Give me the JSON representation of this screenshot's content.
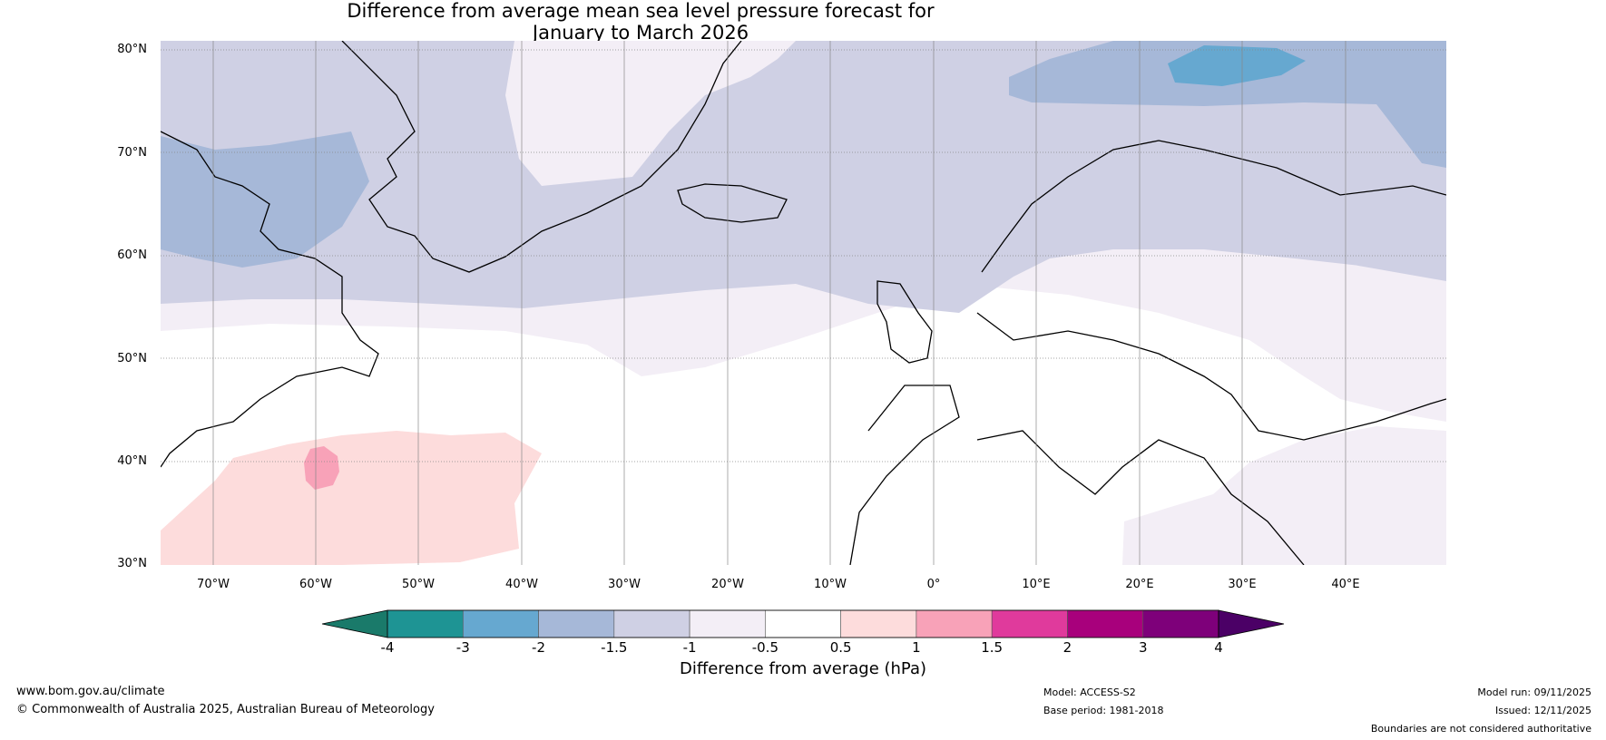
{
  "title": {
    "line1": "Difference from average mean sea level pressure forecast for",
    "line2": "January to March 2026"
  },
  "lat_ticks": [
    "80°N",
    "70°N",
    "60°N",
    "50°N",
    "40°N",
    "30°N"
  ],
  "lon_ticks": [
    "70°W",
    "60°W",
    "50°W",
    "40°W",
    "30°W",
    "20°W",
    "10°W",
    "0°",
    "10°E",
    "20°E",
    "30°E",
    "40°E"
  ],
  "colorbar": {
    "title": "Difference from average (hPa)",
    "labels": [
      "-4",
      "-3",
      "-2",
      "-1.5",
      "-1",
      "-0.5",
      "0.5",
      "1",
      "1.5",
      "2",
      "3",
      "4"
    ],
    "colors": [
      "#1a7a6a",
      "#1e9494",
      "#66a8d0",
      "#a6b8d8",
      "#cfd0e4",
      "#f3eef6",
      "#ffffff",
      "#fddcdc",
      "#f8a2b8",
      "#e03a9c",
      "#a8007c",
      "#7e007a",
      "#4b0066"
    ]
  },
  "map": {
    "ocean_color": "#ffffff",
    "land_stroke": "#000000",
    "border_stroke": "#888888"
  },
  "footer": {
    "website": "www.bom.gov.au/climate",
    "copyright": "© Commonwealth of Australia 2025, Australian Bureau of Meteorology",
    "model": "Model: ACCESS-S2",
    "base_period": "Base period: 1981-2018",
    "model_run": "Model run: 09/11/2025",
    "issued": "Issued: 12/11/2025",
    "disclaimer": "Boundaries are not considered authoritative"
  }
}
